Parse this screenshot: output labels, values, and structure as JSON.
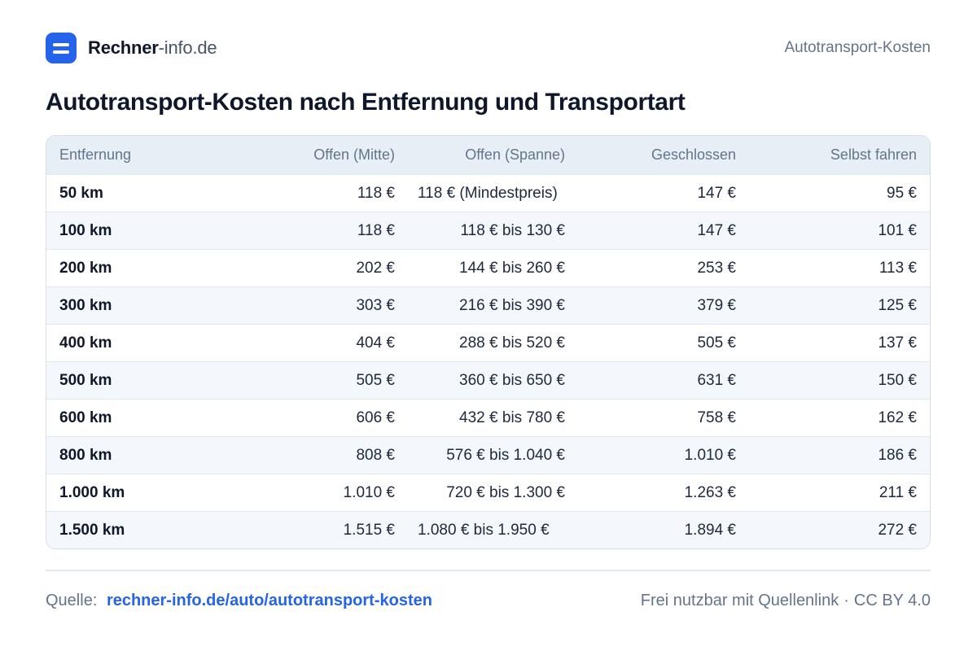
{
  "brand": {
    "name_bold": "Rechner",
    "name_rest": "-info.de"
  },
  "header": {
    "right_label": "Autotransport-Kosten"
  },
  "title": "Autotransport-Kosten nach Entfernung und Transportart",
  "table": {
    "headers": [
      "Entfernung",
      "Offen (Mitte)",
      "Offen (Spanne)",
      "Geschlossen",
      "Selbst fahren"
    ],
    "rows": [
      [
        "50 km",
        "118 €",
        "118 € (Mindestpreis)",
        "147 €",
        "95 €"
      ],
      [
        "100 km",
        "118 €",
        "118 € bis 130 €",
        "147 €",
        "101 €"
      ],
      [
        "200 km",
        "202 €",
        "144 € bis 260 €",
        "253 €",
        "113 €"
      ],
      [
        "300 km",
        "303 €",
        "216 € bis 390 €",
        "379 €",
        "125 €"
      ],
      [
        "400 km",
        "404 €",
        "288 € bis 520 €",
        "505 €",
        "137 €"
      ],
      [
        "500 km",
        "505 €",
        "360 € bis 650 €",
        "631 €",
        "150 €"
      ],
      [
        "600 km",
        "606 €",
        "432 € bis 780 €",
        "758 €",
        "162 €"
      ],
      [
        "800 km",
        "808 €",
        "576 € bis 1.040 €",
        "1.010 €",
        "186 €"
      ],
      [
        "1.000 km",
        "1.010 €",
        "720 € bis 1.300 €",
        "1.263 €",
        "211 €"
      ],
      [
        "1.500 km",
        "1.515 €",
        "1.080 € bis 1.950 €",
        "1.894 €",
        "272 €"
      ]
    ]
  },
  "footer": {
    "source_label": "Quelle:",
    "source_link": "rechner-info.de/auto/autotransport-kosten",
    "license_text": "Frei nutzbar mit Quellenlink",
    "separator": "·",
    "license": "CC BY 4.0"
  },
  "colors": {
    "accent": "#2563eb",
    "header_bg": "#e8eef6",
    "row_alt": "#f4f7fb"
  }
}
